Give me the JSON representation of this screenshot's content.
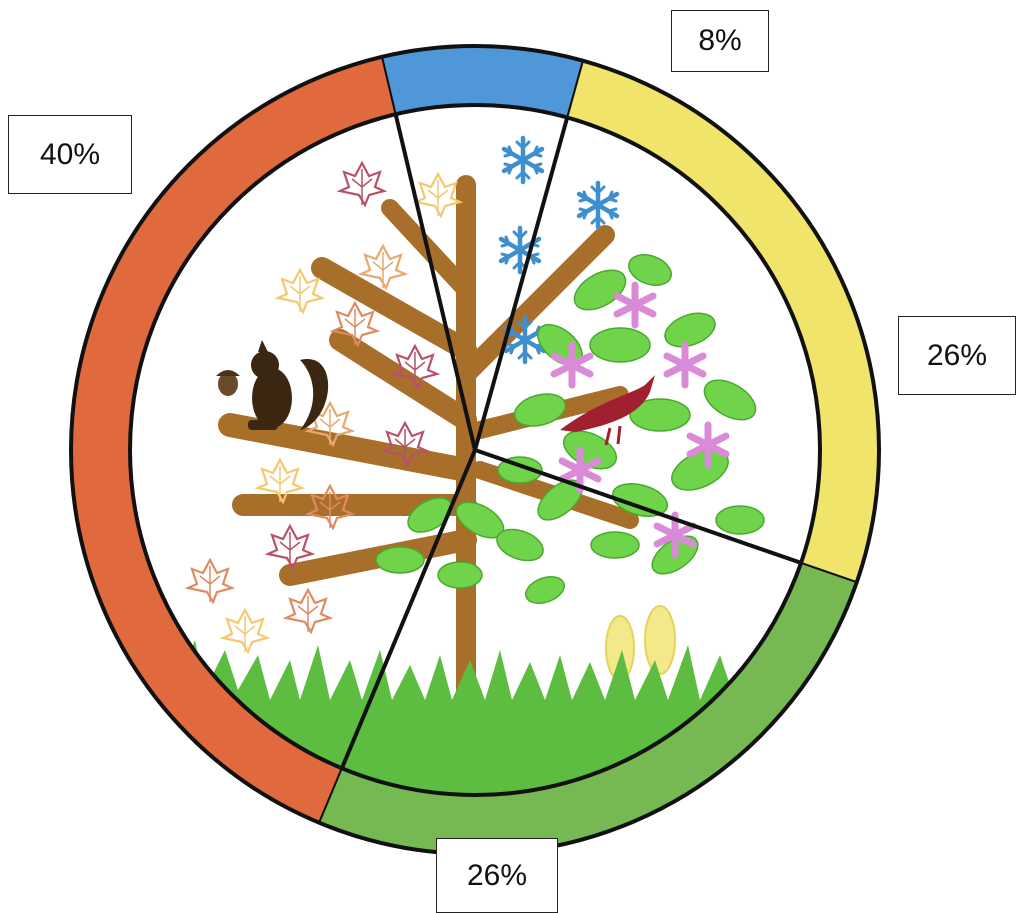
{
  "chart_data": {
    "type": "pie",
    "title": "",
    "slices": [
      {
        "label": "40%",
        "value": 40,
        "color": "#e06a3e",
        "theme": "autumn"
      },
      {
        "label": "8%",
        "value": 8,
        "color": "#4f97d8",
        "theme": "winter"
      },
      {
        "label": "26%",
        "value": 26,
        "color": "#f1e46a",
        "theme": "spring"
      },
      {
        "label": "26%",
        "value": 26,
        "color": "#76b852",
        "theme": "summer"
      }
    ],
    "legend": "none"
  },
  "icons": [
    "tree-icon",
    "autumn-leaf-icon",
    "snowflake-icon",
    "squirrel-icon",
    "acorn-icon",
    "bird-icon",
    "flower-icon",
    "grass-icon",
    "flip-flops-icon"
  ],
  "colors": {
    "trunk": "#a86f2a",
    "snow": "#3f8fcf",
    "leaf_green": "#5fcf3a",
    "flower": "#d98bd8",
    "bird": "#a02030",
    "grass": "#5cbd40"
  }
}
